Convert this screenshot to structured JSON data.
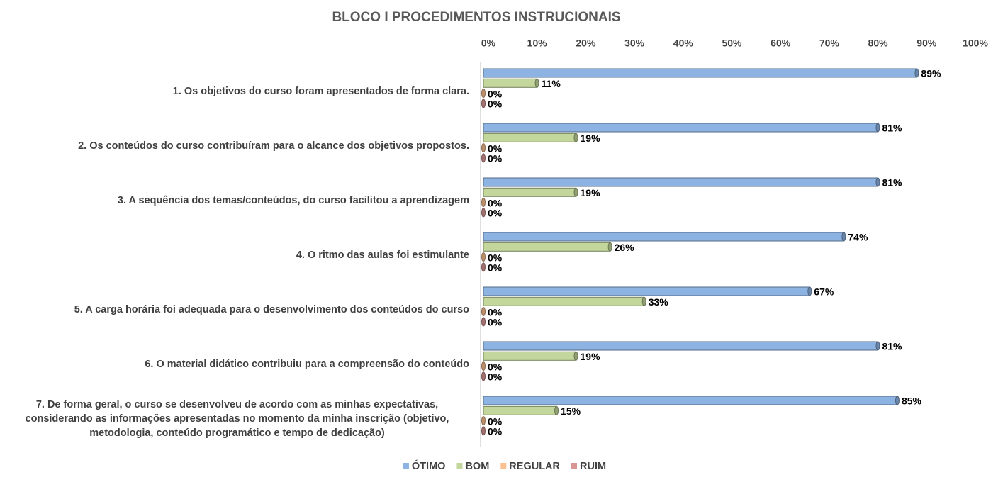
{
  "chart_data": {
    "type": "bar",
    "orientation": "horizontal",
    "title": "BLOCO I PROCEDIMENTOS INSTRUCIONAIS",
    "categories": [
      "1. Os objetivos do curso foram apresentados de forma clara.",
      "2. Os conteúdos do curso contribuíram para o alcance dos objetivos propostos.",
      "3. A sequência dos temas/conteúdos, do curso facilitou a aprendizagem",
      "4. O ritmo das aulas foi estimulante",
      "5. A carga horária foi adequada para o desenvolvimento dos conteúdos do curso",
      "6. O material didático contribuiu para a compreensão do conteúdo",
      "7. De forma geral, o curso se desenvolveu de acordo com as minhas expectativas, considerando as informações apresentadas no momento da minha inscrição (objetivo, metodologia, conteúdo programático e tempo de dedicação)"
    ],
    "series": [
      {
        "name": "ÓTIMO",
        "color": "#8db3e2",
        "values": [
          89,
          81,
          81,
          74,
          67,
          81,
          85
        ],
        "value_labels": [
          "89%",
          "81%",
          "81%",
          "74%",
          "67%",
          "81%",
          "85%"
        ]
      },
      {
        "name": "BOM",
        "color": "#c3d69b",
        "values": [
          11,
          19,
          19,
          26,
          33,
          19,
          15
        ],
        "value_labels": [
          "11%",
          "19%",
          "19%",
          "26%",
          "33%",
          "19%",
          "15%"
        ]
      },
      {
        "name": "REGULAR",
        "color": "#fac090",
        "values": [
          0,
          0,
          0,
          0,
          0,
          0,
          0
        ],
        "value_labels": [
          "0%",
          "0%",
          "0%",
          "0%",
          "0%",
          "0%",
          "0%"
        ]
      },
      {
        "name": "RUIM",
        "color": "#d99694",
        "values": [
          0,
          0,
          0,
          0,
          0,
          0,
          0
        ],
        "value_labels": [
          "0%",
          "0%",
          "0%",
          "0%",
          "0%",
          "0%",
          "0%"
        ]
      }
    ],
    "xlim": [
      0,
      100
    ],
    "xticks": [
      {
        "value": 0,
        "label": "0%"
      },
      {
        "value": 10,
        "label": "10%"
      },
      {
        "value": 20,
        "label": "20%"
      },
      {
        "value": 30,
        "label": "30%"
      },
      {
        "value": 40,
        "label": "40%"
      },
      {
        "value": 50,
        "label": "50%"
      },
      {
        "value": 60,
        "label": "60%"
      },
      {
        "value": 70,
        "label": "70%"
      },
      {
        "value": 80,
        "label": "80%"
      },
      {
        "value": 90,
        "label": "90%"
      },
      {
        "value": 100,
        "label": "100%"
      }
    ],
    "legend": "bottom"
  }
}
